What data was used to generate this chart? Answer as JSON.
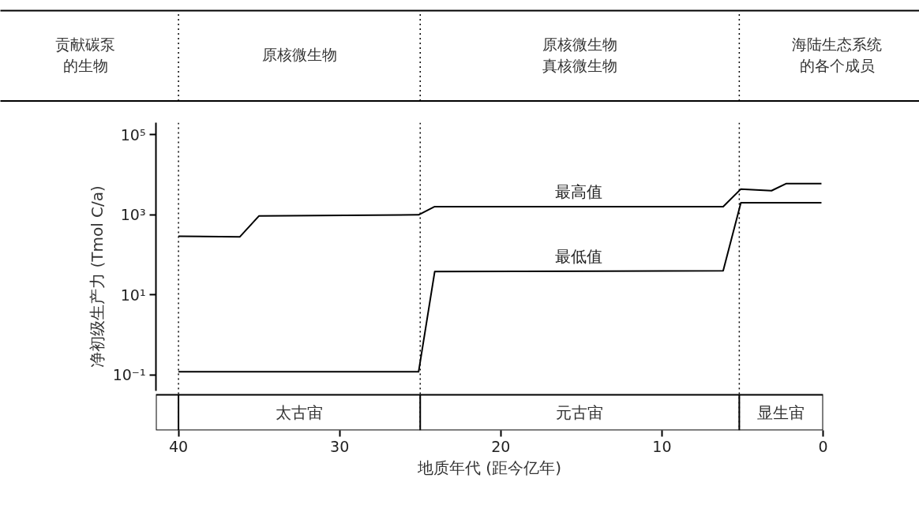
{
  "chart_data": {
    "type": "line",
    "xlabel": "地质年代 (距今亿年)",
    "ylabel": "净初级生产力 (Tmol C/a)",
    "log": "y",
    "xlim": [
      41.4,
      0
    ],
    "xticks": [
      40,
      30,
      20,
      10,
      0
    ],
    "ylim": [
      0.04,
      200000
    ],
    "yticks": [
      {
        "value": 100000,
        "label": "10⁵"
      },
      {
        "value": 1000,
        "label": "10³"
      },
      {
        "value": 10,
        "label": "10¹"
      },
      {
        "value": 0.1,
        "label": "10⁻¹"
      }
    ],
    "series": [
      {
        "name": "最高值",
        "color": "#000000",
        "x": [
          40,
          36.2,
          35,
          25.1,
          24.1,
          6.2,
          5.1,
          3.2,
          2.3,
          0.1
        ],
        "values": [
          290,
          280,
          940,
          1000,
          1600,
          1600,
          4400,
          4000,
          6000,
          6000
        ]
      },
      {
        "name": "最低值",
        "color": "#000000",
        "x": [
          40,
          25.1,
          24.1,
          6.2,
          5.1,
          0.1
        ],
        "values": [
          0.12,
          0.12,
          38,
          40,
          2000,
          2000
        ]
      }
    ],
    "ref_lines": [
      {
        "axis": "x",
        "value": 40,
        "line_style": "dotted"
      },
      {
        "axis": "x",
        "value": 25,
        "line_style": "dotted"
      },
      {
        "axis": "x",
        "value": 5.2,
        "line_style": "dotted"
      }
    ],
    "annotations": [
      "贡献碳泵的生物",
      "原核微生物",
      "原核微生物真核微生物",
      "海陆生态系统的各个成员",
      "太古宙",
      "元古宙",
      "显生宙"
    ]
  }
}
